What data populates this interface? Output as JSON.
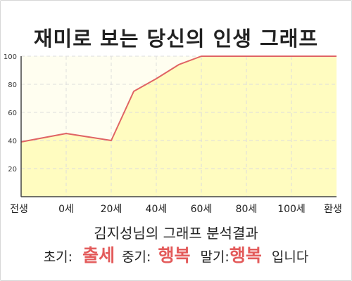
{
  "title": "재미로 보는 당신의 인생 그래프",
  "analysis_title": "김지성님의 그래프 분석결과",
  "summary": {
    "early_label": "초기:",
    "early_value": "출세",
    "middle_label": "중기:",
    "middle_value": "행복",
    "late_label": "말기:",
    "late_value": "행복",
    "ending": "입니다"
  },
  "colors": {
    "line": "#e06464",
    "fill": "#fffcc0",
    "plot_bg": "#fffef0",
    "grid": "#dddddd",
    "accent_text": "#e35b5b"
  },
  "chart_data": {
    "type": "area",
    "title": "재미로 보는 당신의 인생 그래프",
    "x_labels": [
      "전생",
      "0세",
      "20세",
      "40세",
      "60세",
      "80세",
      "100세",
      "환생"
    ],
    "x": [
      -20,
      0,
      20,
      30,
      40,
      50,
      60,
      70,
      80,
      90,
      100,
      120
    ],
    "y": [
      39,
      45,
      40,
      75,
      84,
      94,
      100,
      100,
      100,
      100,
      100,
      100
    ],
    "y_ticks": [
      20,
      40,
      60,
      80,
      100
    ],
    "ylim": [
      0,
      100
    ],
    "xlim": [
      -20,
      120
    ],
    "grid": true
  }
}
